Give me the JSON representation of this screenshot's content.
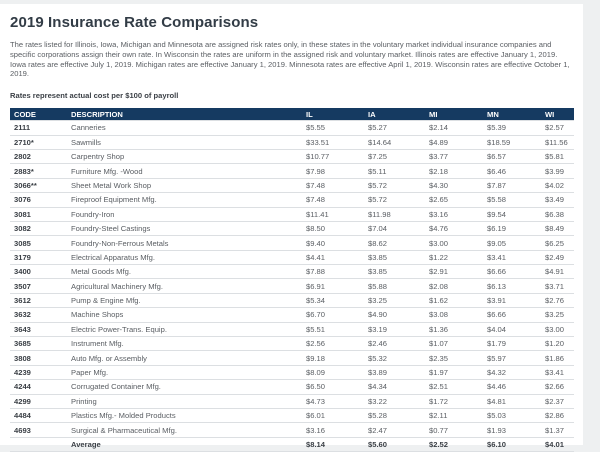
{
  "page": {
    "title": "2019 Insurance Rate Comparisons",
    "intro": "The rates listed for Illinois, Iowa, Michigan and Minnesota are assigned risk rates only, in these states in the voluntary market individual insurance companies and specific corporations assign their own rate. In Wisconsin the rates are uniform in the assigned risk and voluntary market. Illinois rates are effective January 1, 2019. Iowa rates are effective July 1, 2019. Michigan rates are effective January 1, 2019. Minnesota rates are effective April 1, 2019. Wisconsin rates are effective October 1, 2019.",
    "note": "Rates represent actual cost per $100 of payroll"
  },
  "colors": {
    "header_bg": "#153a61",
    "title_text": "#323c46",
    "body_text": "#5a5e63"
  },
  "table": {
    "columns": [
      "CODE",
      "DESCRIPTION",
      "IL",
      "IA",
      "MI",
      "MN",
      "WI"
    ],
    "rows": [
      {
        "code": "2111",
        "description": "Canneries",
        "rates": [
          "$5.55",
          "$5.27",
          "$2.14",
          "$5.39",
          "$2.57"
        ]
      },
      {
        "code": "2710*",
        "description": "Sawmills",
        "rates": [
          "$33.51",
          "$14.64",
          "$4.89",
          "$18.59",
          "$11.56"
        ]
      },
      {
        "code": "2802",
        "description": "Carpentry Shop",
        "rates": [
          "$10.77",
          "$7.25",
          "$3.77",
          "$6.57",
          "$5.81"
        ]
      },
      {
        "code": "2883*",
        "description": "Furniture Mfg. -Wood",
        "rates": [
          "$7.98",
          "$5.11",
          "$2.18",
          "$6.46",
          "$3.99"
        ]
      },
      {
        "code": "3066**",
        "description": "Sheet Metal Work Shop",
        "rates": [
          "$7.48",
          "$5.72",
          "$4.30",
          "$7.87",
          "$4.02"
        ]
      },
      {
        "code": "3076",
        "description": "Fireproof Equipment Mfg.",
        "rates": [
          "$7.48",
          "$5.72",
          "$2.65",
          "$5.58",
          "$3.49"
        ]
      },
      {
        "code": "3081",
        "description": "Foundry-Iron",
        "rates": [
          "$11.41",
          "$11.98",
          "$3.16",
          "$9.54",
          "$6.38"
        ]
      },
      {
        "code": "3082",
        "description": "Foundry-Steel Castings",
        "rates": [
          "$8.50",
          "$7.04",
          "$4.76",
          "$6.19",
          "$8.49"
        ]
      },
      {
        "code": "3085",
        "description": "Foundry-Non-Ferrous Metals",
        "rates": [
          "$9.40",
          "$8.62",
          "$3.00",
          "$9.05",
          "$6.25"
        ]
      },
      {
        "code": "3179",
        "description": "Electrical Apparatus Mfg.",
        "rates": [
          "$4.41",
          "$3.85",
          "$1.22",
          "$3.41",
          "$2.49"
        ]
      },
      {
        "code": "3400",
        "description": "Metal Goods Mfg.",
        "rates": [
          "$7.88",
          "$3.85",
          "$2.91",
          "$6.66",
          "$4.91"
        ]
      },
      {
        "code": "3507",
        "description": "Agricultural Machinery Mfg.",
        "rates": [
          "$6.91",
          "$5.88",
          "$2.08",
          "$6.13",
          "$3.71"
        ]
      },
      {
        "code": "3612",
        "description": "Pump & Engine Mfg.",
        "rates": [
          "$5.34",
          "$3.25",
          "$1.62",
          "$3.91",
          "$2.76"
        ]
      },
      {
        "code": "3632",
        "description": "Machine Shops",
        "rates": [
          "$6.70",
          "$4.90",
          "$3.08",
          "$6.66",
          "$3.25"
        ]
      },
      {
        "code": "3643",
        "description": "Electric Power-Trans. Equip.",
        "rates": [
          "$5.51",
          "$3.19",
          "$1.36",
          "$4.04",
          "$3.00"
        ]
      },
      {
        "code": "3685",
        "description": "Instrument Mfg.",
        "rates": [
          "$2.56",
          "$2.46",
          "$1.07",
          "$1.79",
          "$1.20"
        ]
      },
      {
        "code": "3808",
        "description": "Auto Mfg. or Assembly",
        "rates": [
          "$9.18",
          "$5.32",
          "$2.35",
          "$5.97",
          "$1.86"
        ]
      },
      {
        "code": "4239",
        "description": "Paper Mfg.",
        "rates": [
          "$8.09",
          "$3.89",
          "$1.97",
          "$4.32",
          "$3.41"
        ]
      },
      {
        "code": "4244",
        "description": "Corrugated Container Mfg.",
        "rates": [
          "$6.50",
          "$4.34",
          "$2.51",
          "$4.46",
          "$2.66"
        ]
      },
      {
        "code": "4299",
        "description": "Printing",
        "rates": [
          "$4.73",
          "$3.22",
          "$1.72",
          "$4.81",
          "$2.37"
        ]
      },
      {
        "code": "4484",
        "description": "Plastics Mfg.- Molded Products",
        "rates": [
          "$6.01",
          "$5.28",
          "$2.11",
          "$5.03",
          "$2.86"
        ]
      },
      {
        "code": "4693",
        "description": "Surgical & Pharmaceutical Mfg.",
        "rates": [
          "$3.16",
          "$2.47",
          "$0.77",
          "$1.93",
          "$1.37"
        ]
      }
    ],
    "average": {
      "label": "Average",
      "rates": [
        "$8.14",
        "$5.60",
        "$2.52",
        "$6.10",
        "$4.01"
      ]
    }
  }
}
